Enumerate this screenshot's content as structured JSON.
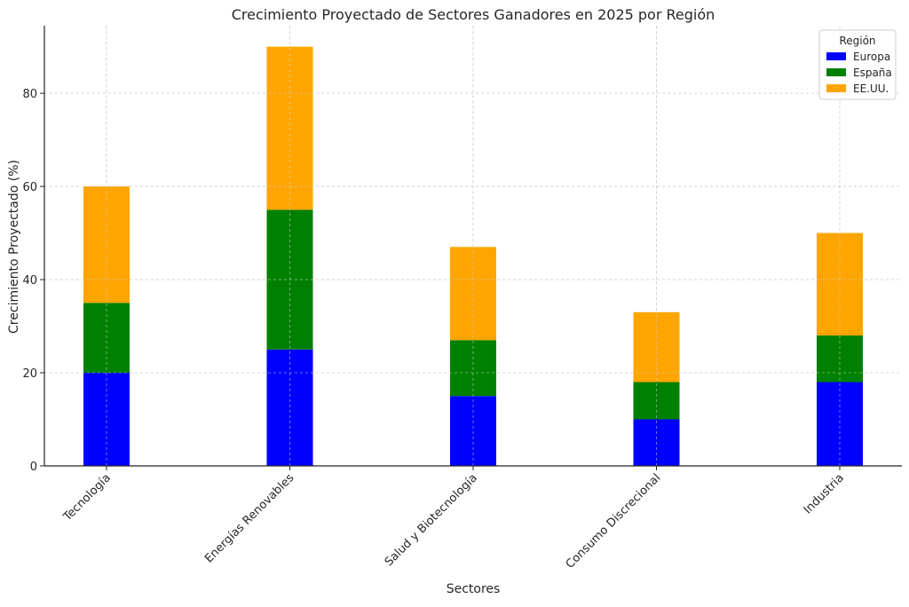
{
  "chart_data": {
    "type": "bar",
    "stacked": true,
    "title": "Crecimiento Proyectado de Sectores Ganadores en 2025 por Región",
    "xlabel": "Sectores",
    "ylabel": "Crecimiento Proyectado (%)",
    "categories": [
      "Tecnología",
      "Energías Renovables",
      "Salud y Biotecnología",
      "Consumo Discrecional",
      "Industria"
    ],
    "series": [
      {
        "name": "Europa",
        "color": "#0000ff",
        "values": [
          20,
          25,
          15,
          10,
          18
        ]
      },
      {
        "name": "España",
        "color": "#008000",
        "values": [
          15,
          30,
          12,
          8,
          10
        ]
      },
      {
        "name": "EE.UU.",
        "color": "#ffa500",
        "values": [
          25,
          35,
          20,
          15,
          22
        ]
      }
    ],
    "ylim": [
      0,
      94.5
    ],
    "yticks": [
      0,
      20,
      40,
      60,
      80
    ],
    "grid": true,
    "legend": {
      "title": "Región",
      "placement": "top-right"
    }
  }
}
